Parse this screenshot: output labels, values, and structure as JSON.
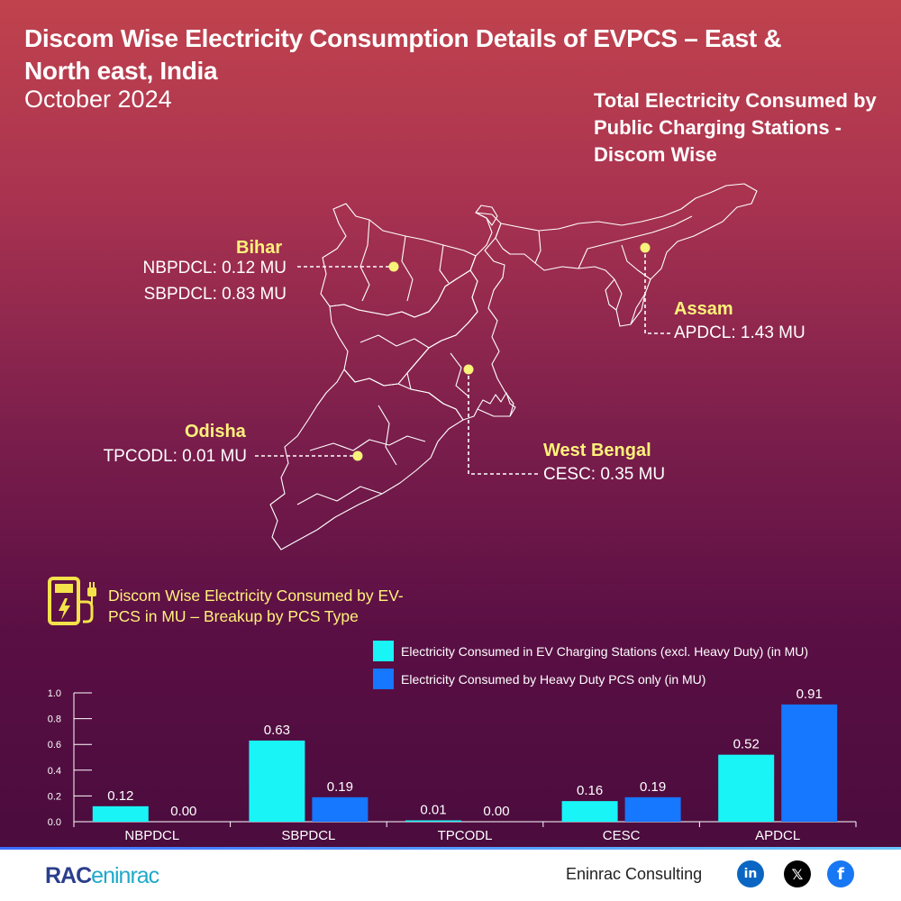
{
  "header": {
    "title": "Discom Wise Electricity Consumption Details of EVPCS – East & North east, India",
    "subtitle": "October 2024",
    "map_heading": "Total Electricity Consumed by Public Charging Stations - Discom Wise"
  },
  "map": {
    "states": [
      {
        "name": "Bihar",
        "discoms": [
          "NBPDCL: 0.12 MU",
          "SBPDCL: 0.83 MU"
        ]
      },
      {
        "name": "Assam",
        "discoms": [
          "APDCL: 1.43 MU"
        ]
      },
      {
        "name": "Odisha",
        "discoms": [
          "TPCODL: 0.01 MU"
        ]
      },
      {
        "name": "West Bengal",
        "discoms": [
          "CESC: 0.35 MU"
        ]
      }
    ],
    "marker_color": "#f7f27a"
  },
  "breakup": {
    "title": "Discom Wise Electricity Consumed by EV-PCS in MU – Breakup by PCS Type",
    "icon": "ev-charger-icon"
  },
  "chart_data": {
    "type": "bar",
    "categories": [
      "NBPDCL",
      "SBPDCL",
      "TPCODL",
      "CESC",
      "APDCL"
    ],
    "series": [
      {
        "name": "Electricity Consumed in EV Charging Stations (excl. Heavy Duty) (in MU)",
        "values": [
          0.12,
          0.63,
          0.01,
          0.16,
          0.52
        ],
        "labels": [
          "0.12",
          "0.63",
          "0.01",
          "0.16",
          "0.52"
        ],
        "color": "#19f4f7"
      },
      {
        "name": "Electricity Consumed by Heavy Duty PCS only (in MU)",
        "values": [
          0.0,
          0.19,
          0.0,
          0.19,
          0.91
        ],
        "labels": [
          "0.00",
          "0.19",
          "0.00",
          "0.19",
          "0.91"
        ],
        "color": "#1677ff"
      }
    ],
    "ylim": [
      0,
      1.0
    ],
    "yticks": [
      "0.0",
      "0.2",
      "0.4",
      "0.6",
      "0.8",
      "1.0"
    ],
    "legend_position": "top-right"
  },
  "footer": {
    "logo_main": "RAC",
    "logo_suffix": "eninrac",
    "company": "Eninrac Consulting",
    "social": [
      {
        "icon": "linkedin-icon",
        "text": "in",
        "color": "#0a66c2"
      },
      {
        "icon": "x-icon",
        "text": "𝕏",
        "color": "#000000"
      },
      {
        "icon": "facebook-icon",
        "text": "f",
        "color": "#1877f2"
      }
    ]
  }
}
